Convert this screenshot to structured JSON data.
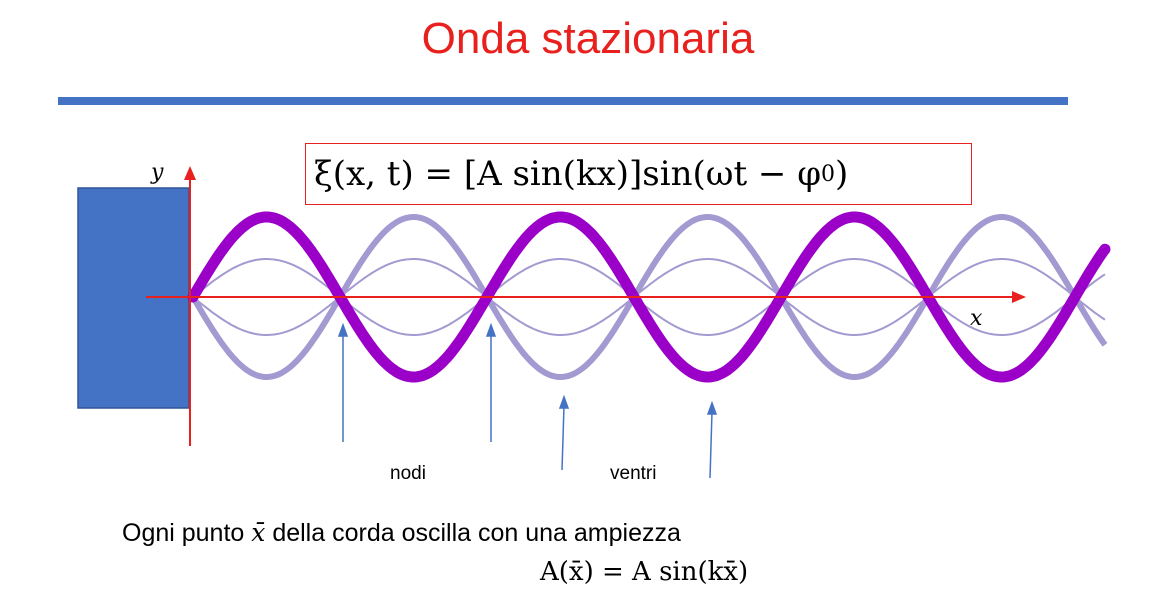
{
  "title": "Onda stazionaria",
  "formula": {
    "lhs": "ξ(x, t)",
    "eq": " = ",
    "amp": "[A sin(kx)]",
    "rhs": "sin(ωt − φ",
    "sub": "0",
    "close": ")"
  },
  "axes": {
    "y_label": "y",
    "x_label": "x"
  },
  "labels": {
    "nodes": "nodi",
    "antinodes": "ventri"
  },
  "caption": {
    "before": "Ogni punto ",
    "var": "x̄",
    "after": " della corda oscilla con una ampiezza"
  },
  "amplitude_formula": "A(x̄) = A sin(kx̄)",
  "colors": {
    "title": "#e8201e",
    "rule": "#4472c4",
    "wall": "#4472c4",
    "axis": "#e8201e",
    "wave_main": "#9b00c8",
    "wave_faint": "#a29ad0",
    "arrow": "#4472c4"
  }
}
